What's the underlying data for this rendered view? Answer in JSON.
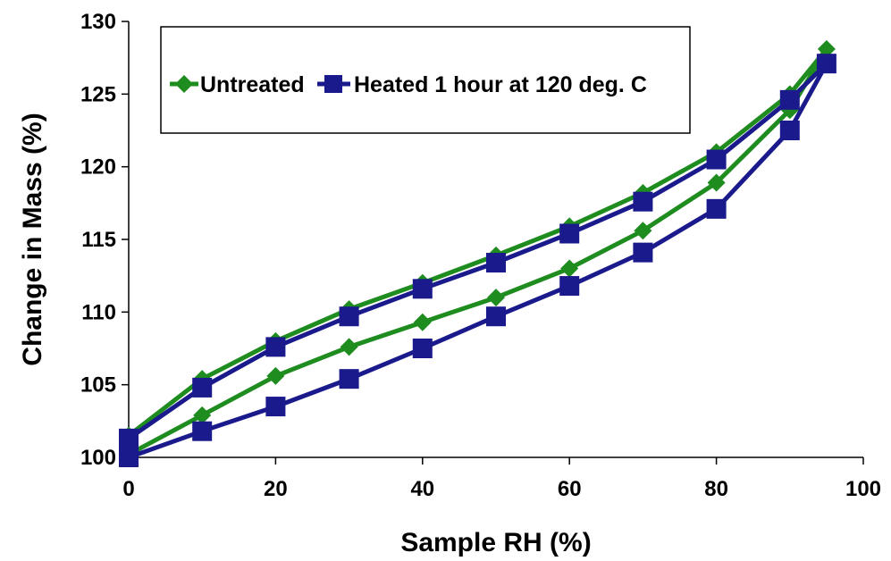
{
  "chart_data": {
    "type": "line",
    "xlabel": "Sample RH (%)",
    "ylabel": "Change in Mass (%)",
    "xlim": [
      0,
      100
    ],
    "ylim": [
      100,
      130
    ],
    "xticks": [
      0,
      20,
      40,
      60,
      80,
      100
    ],
    "yticks": [
      100,
      105,
      110,
      115,
      120,
      125,
      130
    ],
    "grid": false,
    "legend_position": "top",
    "series": [
      {
        "name": "Untreated",
        "color": "#1e8c1e",
        "marker": "diamond",
        "x": [
          0,
          10,
          20,
          30,
          40,
          50,
          60,
          70,
          80,
          90,
          95,
          90,
          80,
          70,
          60,
          50,
          40,
          30,
          20,
          10,
          0
        ],
        "y": [
          100.2,
          102.9,
          105.6,
          107.6,
          109.3,
          111.0,
          113.0,
          115.6,
          118.9,
          123.9,
          128.1,
          125.0,
          121.0,
          118.2,
          115.9,
          113.9,
          112.0,
          110.2,
          108.0,
          105.4,
          101.5
        ]
      },
      {
        "name": "Heated 1 hour at 120 deg. C",
        "color": "#1a1a8c",
        "marker": "square",
        "x": [
          0,
          10,
          20,
          30,
          40,
          50,
          60,
          70,
          80,
          90,
          95,
          90,
          80,
          70,
          60,
          50,
          40,
          30,
          20,
          10,
          0
        ],
        "y": [
          100.0,
          101.8,
          103.5,
          105.4,
          107.5,
          109.7,
          111.8,
          114.1,
          117.1,
          122.5,
          127.1,
          124.6,
          120.5,
          117.6,
          115.4,
          113.4,
          111.6,
          109.7,
          107.6,
          104.8,
          101.3
        ]
      }
    ]
  }
}
